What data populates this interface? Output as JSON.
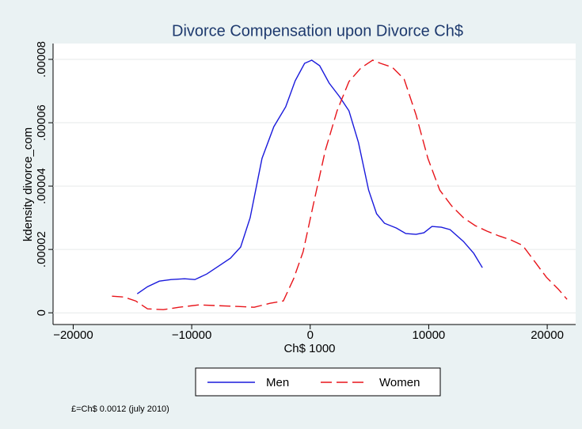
{
  "chart_data": {
    "type": "line",
    "title": "Divorce Compensation upon Divorce Ch$",
    "x_label": "Ch$ 1000",
    "y_label": "kdensity divorce_com",
    "note": "£=Ch$ 0.0012 (july 2010)",
    "xlim": [
      -21700,
      22400
    ],
    "ylim": [
      -3.7e-06,
      8.5e-05
    ],
    "xticks": [
      {
        "value": -20000,
        "label": "−20000"
      },
      {
        "value": -10000,
        "label": "−10000"
      },
      0,
      10000,
      20000
    ],
    "yticks": [
      0,
      {
        "value": 2e-05,
        "label": ".00002"
      },
      {
        "value": 4e-05,
        "label": ".00004"
      },
      {
        "value": 6e-05,
        "label": ".00006"
      },
      {
        "value": 8e-05,
        "label": ".00008"
      }
    ],
    "grid": true,
    "legend": "bottom",
    "series": [
      {
        "name": "Men",
        "color": "#1a1adc",
        "dash": false,
        "x": [
          -14600,
          -13730,
          -12730,
          -11730,
          -10600,
          -9730,
          -8730,
          -7730,
          -6730,
          -5870,
          -5070,
          -4070,
          -3070,
          -2070,
          -1270,
          -470,
          130,
          800,
          1600,
          2470,
          3270,
          4070,
          4930,
          5600,
          6270,
          7270,
          8070,
          8930,
          9600,
          10270,
          11070,
          11800,
          12930,
          13800,
          14530
        ],
        "values": [
          6e-06,
          8.25e-06,
          1e-05,
          1.05e-05,
          1.075e-05,
          1.05e-05,
          1.225e-05,
          1.475e-05,
          1.725e-05,
          2.075e-05,
          3e-05,
          4.875e-05,
          5.875e-05,
          6.5e-05,
          7.325e-05,
          7.875e-05,
          7.975e-05,
          7.8e-05,
          7.25e-05,
          6.825e-05,
          6.375e-05,
          5.375e-05,
          3.875e-05,
          3.125e-05,
          2.825e-05,
          2.675e-05,
          2.5e-05,
          2.475e-05,
          2.525e-05,
          2.725e-05,
          2.7e-05,
          2.625e-05,
          2.25e-05,
          1.875e-05,
          1.425e-05
        ]
      },
      {
        "name": "Women",
        "color": "#e8141a",
        "dash": true,
        "x": [
          -16730,
          -15730,
          -14730,
          -13730,
          -12400,
          -11070,
          -9400,
          -7730,
          -6070,
          -4730,
          -3400,
          -2270,
          -1400,
          -600,
          270,
          1270,
          2270,
          3270,
          4270,
          5270,
          5930,
          6930,
          7930,
          8930,
          9930,
          10930,
          11930,
          12930,
          13930,
          14930,
          15930,
          16930,
          17930,
          18930,
          19930,
          20930,
          21670
        ],
        "values": [
          5.25e-06,
          5e-06,
          3.75e-06,
          1.25e-06,
          1e-06,
          1.75e-06,
          2.5e-06,
          2.25e-06,
          2e-06,
          1.75e-06,
          3e-06,
          3.75e-06,
          1.075e-05,
          1.925e-05,
          3.425e-05,
          5.125e-05,
          6.375e-05,
          7.3e-05,
          7.725e-05,
          7.975e-05,
          7.875e-05,
          7.75e-05,
          7.375e-05,
          6.25e-05,
          4.875e-05,
          3.875e-05,
          3.375e-05,
          3e-05,
          2.75e-05,
          2.575e-05,
          2.425e-05,
          2.3e-05,
          2.125e-05,
          1.625e-05,
          1.125e-05,
          7.5e-06,
          4.25e-06
        ]
      }
    ]
  }
}
